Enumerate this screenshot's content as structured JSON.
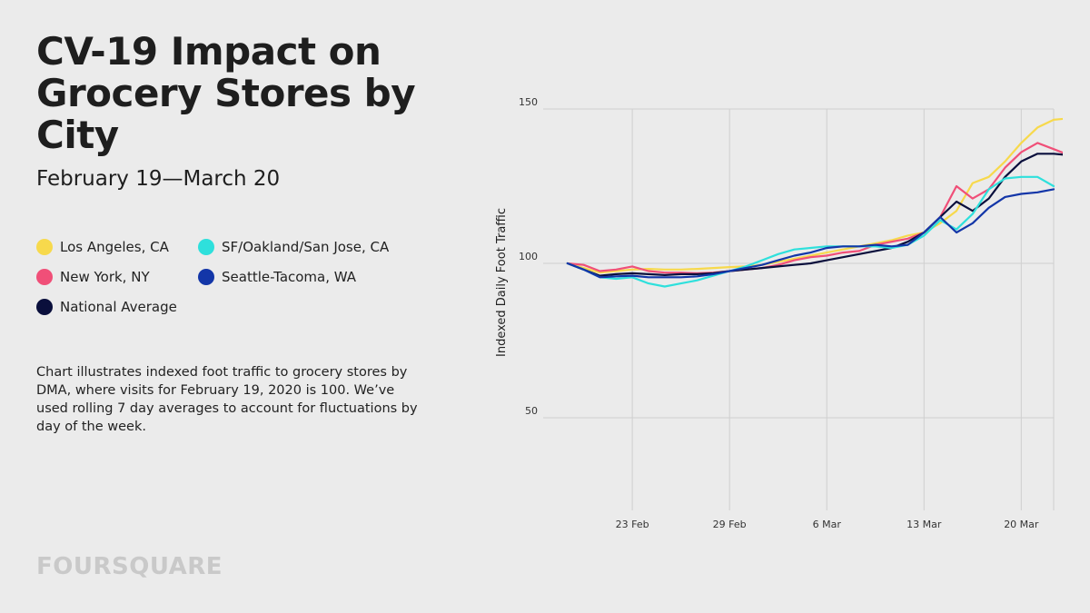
{
  "header": {
    "title": "CV-19 Impact on Grocery Stores by City",
    "subtitle": "February 19—March 20"
  },
  "note": "Chart illustrates indexed foot traffic to grocery stores by DMA, where visits for February 19, 2020 is 100. We’ve used rolling 7 day averages to account for fluctuations by day of the week.",
  "brand": "FOURSQUARE",
  "colors": {
    "background": "#ebebeb",
    "grid": "#cfcfcf"
  },
  "chart_data": {
    "type": "line",
    "ylabel": "Indexed Daily Foot Traffic",
    "ylim": [
      20,
      150
    ],
    "yticks": [
      50,
      100,
      150
    ],
    "x_start": "2020-02-19",
    "xlim_day_index": [
      -1.5,
      30
    ],
    "xticks": [
      {
        "label": "23 Feb",
        "day": 4
      },
      {
        "label": "29 Feb",
        "day": 10
      },
      {
        "label": "6 Mar",
        "day": 16
      },
      {
        "label": "13 Mar",
        "day": 22
      },
      {
        "label": "20 Mar",
        "day": 28
      }
    ],
    "grid": true,
    "legend_placement": "left",
    "series": [
      {
        "name": "Los Angeles, CA",
        "color": "#f7d94c",
        "values": [
          100,
          98.5,
          97,
          97.5,
          98,
          98.2,
          98,
          98,
          98.2,
          98.5,
          98.8,
          99,
          99.5,
          100.5,
          101.5,
          102.5,
          103.5,
          104.5,
          105.5,
          106.5,
          107.5,
          109,
          110,
          113,
          117,
          126,
          128,
          133,
          139,
          144,
          146.5,
          147,
          141
        ]
      },
      {
        "name": "New York, NY",
        "color": "#f04f78",
        "values": [
          100,
          99.5,
          97.5,
          98,
          99,
          97.5,
          97,
          97,
          96.8,
          97,
          97.5,
          98,
          98.5,
          99.5,
          101,
          102,
          102.5,
          103.5,
          104,
          106,
          107,
          108,
          110,
          115,
          125,
          121,
          124,
          131,
          136,
          139,
          137,
          135
        ]
      },
      {
        "name": "National Average",
        "color": "#0a0f3c",
        "values": [
          100,
          98,
          96,
          96.5,
          96.8,
          96.5,
          96.2,
          96.5,
          96.5,
          96.8,
          97.5,
          98,
          98.5,
          99,
          99.5,
          100,
          101,
          102,
          103,
          104,
          105,
          107,
          110,
          115,
          120,
          117,
          121,
          128,
          133,
          135.5,
          135.5,
          135
        ]
      },
      {
        "name": "SF/Oakland/San Jose, CA",
        "color": "#2ee0dc",
        "values": [
          100,
          98,
          95.5,
          95,
          95.5,
          93.5,
          92.5,
          93.5,
          94.5,
          96,
          97.5,
          99,
          101,
          103,
          104.5,
          105,
          105.5,
          105.5,
          105.5,
          105.5,
          105,
          106,
          109,
          114,
          111,
          116,
          124,
          127.5,
          128,
          128,
          125
        ]
      },
      {
        "name": "Seattle-Tacoma, WA",
        "color": "#1336a8",
        "values": [
          100,
          98,
          95.5,
          95.8,
          96,
          95.5,
          95.5,
          95.5,
          95.8,
          96.5,
          97.5,
          98.5,
          99.5,
          101,
          102.5,
          103.5,
          105,
          105.5,
          105.5,
          106,
          105.5,
          106,
          110,
          115,
          110,
          113,
          118,
          121.5,
          122.5,
          123,
          124
        ]
      }
    ]
  }
}
